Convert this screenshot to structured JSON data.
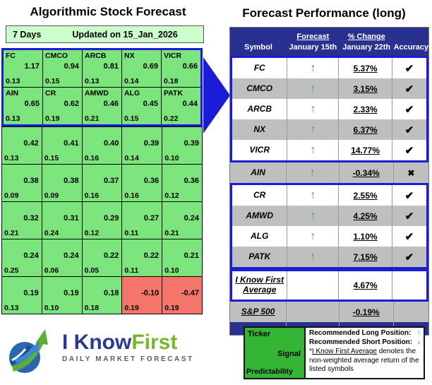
{
  "colors": {
    "accent_blue": "#1B1BD8",
    "navy_header": "#28318F",
    "cell_green": "#7BE57B",
    "cell_red": "#F4766B",
    "bar_pale_green": "#CCFFCC",
    "row_gray": "#BFBFBF",
    "legend_green": "#35B535",
    "arrow_green": "#27AE60",
    "arrow_red": "#E03131",
    "logo_blue": "#2B3A8F",
    "logo_green": "#76B82A"
  },
  "icons": {
    "up_arrow": "↑",
    "down_arrow": "↓",
    "check": "✔",
    "cross": "✖"
  },
  "left_panel": {
    "title": "Algorithmic Stock Forecast",
    "period": "7 Days",
    "updated": "Updated on 15_Jan_2026",
    "grid_groups": [
      {
        "boxed": true,
        "rows": [
          {
            "cells": [
              {
                "ticker": "FC",
                "signal": "1.17",
                "predictability": "0.13",
                "negative": false
              },
              {
                "ticker": "CMCO",
                "signal": "0.94",
                "predictability": "0.15",
                "negative": false
              },
              {
                "ticker": "ARCB",
                "signal": "0.81",
                "predictability": "0.13",
                "negative": false
              },
              {
                "ticker": "NX",
                "signal": "0.69",
                "predictability": "0.14",
                "negative": false
              },
              {
                "ticker": "VICR",
                "signal": "0.66",
                "predictability": "0.18",
                "negative": false
              }
            ]
          },
          {
            "cells": [
              {
                "ticker": "AIN",
                "signal": "0.65",
                "predictability": "0.13",
                "negative": false
              },
              {
                "ticker": "CR",
                "signal": "0.62",
                "predictability": "0.19",
                "negative": false
              },
              {
                "ticker": "AMWD",
                "signal": "0.46",
                "predictability": "0.21",
                "negative": false
              },
              {
                "ticker": "ALG",
                "signal": "0.45",
                "predictability": "0.15",
                "negative": false
              },
              {
                "ticker": "PATK",
                "signal": "0.44",
                "predictability": "0.22",
                "negative": false
              }
            ]
          }
        ]
      },
      {
        "boxed": false,
        "rows": [
          {
            "cells": [
              {
                "ticker": "",
                "signal": "0.42",
                "predictability": "0.13",
                "negative": false
              },
              {
                "ticker": "",
                "signal": "0.41",
                "predictability": "0.15",
                "negative": false
              },
              {
                "ticker": "",
                "signal": "0.40",
                "predictability": "0.16",
                "negative": false
              },
              {
                "ticker": "",
                "signal": "0.39",
                "predictability": "0.14",
                "negative": false
              },
              {
                "ticker": "",
                "signal": "0.39",
                "predictability": "0.10",
                "negative": false
              }
            ]
          },
          {
            "cells": [
              {
                "ticker": "",
                "signal": "0.38",
                "predictability": "0.09",
                "negative": false
              },
              {
                "ticker": "",
                "signal": "0.38",
                "predictability": "0.09",
                "negative": false
              },
              {
                "ticker": "",
                "signal": "0.37",
                "predictability": "0.16",
                "negative": false
              },
              {
                "ticker": "",
                "signal": "0.36",
                "predictability": "0.16",
                "negative": false
              },
              {
                "ticker": "",
                "signal": "0.36",
                "predictability": "0.12",
                "negative": false
              }
            ]
          },
          {
            "cells": [
              {
                "ticker": "",
                "signal": "0.32",
                "predictability": "0.21",
                "negative": false
              },
              {
                "ticker": "",
                "signal": "0.31",
                "predictability": "0.24",
                "negative": false
              },
              {
                "ticker": "",
                "signal": "0.29",
                "predictability": "0.12",
                "negative": false
              },
              {
                "ticker": "",
                "signal": "0.27",
                "predictability": "0.11",
                "negative": false
              },
              {
                "ticker": "",
                "signal": "0.24",
                "predictability": "0.21",
                "negative": false
              }
            ]
          },
          {
            "cells": [
              {
                "ticker": "",
                "signal": "0.24",
                "predictability": "0.25",
                "negative": false
              },
              {
                "ticker": "",
                "signal": "0.24",
                "predictability": "0.06",
                "negative": false
              },
              {
                "ticker": "",
                "signal": "0.22",
                "predictability": "0.05",
                "negative": false
              },
              {
                "ticker": "",
                "signal": "0.22",
                "predictability": "0.11",
                "negative": false
              },
              {
                "ticker": "",
                "signal": "0.21",
                "predictability": "0.10",
                "negative": false
              }
            ]
          },
          {
            "cells": [
              {
                "ticker": "",
                "signal": "0.19",
                "predictability": "0.13",
                "negative": false
              },
              {
                "ticker": "",
                "signal": "0.19",
                "predictability": "0.10",
                "negative": false
              },
              {
                "ticker": "",
                "signal": "0.18",
                "predictability": "0.18",
                "negative": false
              },
              {
                "ticker": "",
                "signal": "-0.10",
                "predictability": "0.19",
                "negative": true
              },
              {
                "ticker": "",
                "signal": "-0.47",
                "predictability": "0.19",
                "negative": true
              }
            ]
          }
        ]
      }
    ]
  },
  "right_panel": {
    "title": "Forecast Performance (long)",
    "table": {
      "headers": {
        "symbol": "Symbol",
        "forecast_line1": "Forecast",
        "forecast_line2": "January 15th",
        "change_line1": "% Change",
        "change_line2": "January 22th",
        "accuracy": "Accuracy"
      },
      "groups": [
        {
          "boxed": true,
          "rows": [
            {
              "symbol": "FC",
              "symbol_line2": "",
              "forecast": "up",
              "change": "5.37%",
              "accuracy": "check",
              "shade": "white",
              "tall": false,
              "underline": false
            },
            {
              "symbol": "CMCO",
              "symbol_line2": "",
              "forecast": "up",
              "change": "3.15%",
              "accuracy": "check",
              "shade": "gray",
              "tall": false,
              "underline": false
            },
            {
              "symbol": "ARCB",
              "symbol_line2": "",
              "forecast": "up",
              "change": "2.33%",
              "accuracy": "check",
              "shade": "white",
              "tall": false,
              "underline": false
            },
            {
              "symbol": "NX",
              "symbol_line2": "",
              "forecast": "up",
              "change": "6.37%",
              "accuracy": "check",
              "shade": "gray",
              "tall": false,
              "underline": false
            },
            {
              "symbol": "VICR",
              "symbol_line2": "",
              "forecast": "up",
              "change": "14.77%",
              "accuracy": "check",
              "shade": "white",
              "tall": false,
              "underline": false
            }
          ]
        },
        {
          "boxed": false,
          "rows": [
            {
              "symbol": "AIN",
              "symbol_line2": "",
              "forecast": "up",
              "change": "-0.34%",
              "accuracy": "cross",
              "shade": "gray",
              "tall": false,
              "underline": false
            }
          ]
        },
        {
          "boxed": true,
          "rows": [
            {
              "symbol": "CR",
              "symbol_line2": "",
              "forecast": "up",
              "change": "2.55%",
              "accuracy": "check",
              "shade": "white",
              "tall": false,
              "underline": false
            },
            {
              "symbol": "AMWD",
              "symbol_line2": "",
              "forecast": "up",
              "change": "4.25%",
              "accuracy": "check",
              "shade": "gray",
              "tall": false,
              "underline": false
            },
            {
              "symbol": "ALG",
              "symbol_line2": "",
              "forecast": "up",
              "change": "1.10%",
              "accuracy": "check",
              "shade": "white",
              "tall": false,
              "underline": false
            },
            {
              "symbol": "PATK",
              "symbol_line2": "",
              "forecast": "up",
              "change": "7.15%",
              "accuracy": "check",
              "shade": "gray",
              "tall": false,
              "underline": false
            }
          ]
        },
        {
          "boxed": true,
          "rows": [
            {
              "symbol": "I Know First",
              "symbol_line2": "Average",
              "forecast": "",
              "change": "4.67%",
              "accuracy": "",
              "shade": "white",
              "tall": true,
              "underline": true
            }
          ]
        },
        {
          "boxed": false,
          "rows": [
            {
              "symbol": "S&P 500",
              "symbol_line2": "",
              "forecast": "",
              "change": "-0.19%",
              "accuracy": "",
              "shade": "gray",
              "tall": false,
              "underline": true
            }
          ]
        }
      ]
    }
  },
  "logo": {
    "text_primary": "I Know",
    "text_secondary": "First",
    "tagline": "DAILY MARKET FORECAST"
  },
  "legend": {
    "ticker_label": "Ticker",
    "signal_label": "Signal",
    "predictability_label": "Predictability",
    "long_label": "Recommended Long Position:",
    "short_label": "Recommended Short Position:",
    "note_prefix": "*",
    "note_underlined": "I Know First Average",
    "note_rest": " denotes the non-weighted average return of the listed symbols"
  },
  "chart_data": [
    {
      "type": "table",
      "title": "Algorithmic Stock Forecast",
      "period": "7 Days",
      "updated": "15_Jan_2026",
      "columns": [
        "ticker",
        "signal",
        "predictability"
      ],
      "rows": [
        [
          "FC",
          1.17,
          0.13
        ],
        [
          "CMCO",
          0.94,
          0.15
        ],
        [
          "ARCB",
          0.81,
          0.13
        ],
        [
          "NX",
          0.69,
          0.14
        ],
        [
          "VICR",
          0.66,
          0.18
        ],
        [
          "AIN",
          0.65,
          0.13
        ],
        [
          "CR",
          0.62,
          0.19
        ],
        [
          "AMWD",
          0.46,
          0.21
        ],
        [
          "ALG",
          0.45,
          0.15
        ],
        [
          "PATK",
          0.44,
          0.22
        ],
        [
          "",
          0.42,
          0.13
        ],
        [
          "",
          0.41,
          0.15
        ],
        [
          "",
          0.4,
          0.16
        ],
        [
          "",
          0.39,
          0.14
        ],
        [
          "",
          0.39,
          0.1
        ],
        [
          "",
          0.38,
          0.09
        ],
        [
          "",
          0.38,
          0.09
        ],
        [
          "",
          0.37,
          0.16
        ],
        [
          "",
          0.36,
          0.16
        ],
        [
          "",
          0.36,
          0.12
        ],
        [
          "",
          0.32,
          0.21
        ],
        [
          "",
          0.31,
          0.24
        ],
        [
          "",
          0.29,
          0.12
        ],
        [
          "",
          0.27,
          0.11
        ],
        [
          "",
          0.24,
          0.21
        ],
        [
          "",
          0.24,
          0.25
        ],
        [
          "",
          0.24,
          0.06
        ],
        [
          "",
          0.22,
          0.05
        ],
        [
          "",
          0.22,
          0.11
        ],
        [
          "",
          0.21,
          0.1
        ],
        [
          "",
          0.19,
          0.13
        ],
        [
          "",
          0.19,
          0.1
        ],
        [
          "",
          0.18,
          0.18
        ],
        [
          "",
          -0.1,
          0.19
        ],
        [
          "",
          -0.47,
          0.19
        ]
      ],
      "cell_color_rule": "green if signal >= 0, red if signal < 0"
    },
    {
      "type": "table",
      "title": "Forecast Performance (long)",
      "columns": [
        "Symbol",
        "Forecast January 15th",
        "% Change January 22th",
        "Accuracy"
      ],
      "rows": [
        [
          "FC",
          "up",
          "5.37%",
          "correct"
        ],
        [
          "CMCO",
          "up",
          "3.15%",
          "correct"
        ],
        [
          "ARCB",
          "up",
          "2.33%",
          "correct"
        ],
        [
          "NX",
          "up",
          "6.37%",
          "correct"
        ],
        [
          "VICR",
          "up",
          "14.77%",
          "correct"
        ],
        [
          "AIN",
          "up",
          "-0.34%",
          "incorrect"
        ],
        [
          "CR",
          "up",
          "2.55%",
          "correct"
        ],
        [
          "AMWD",
          "up",
          "4.25%",
          "correct"
        ],
        [
          "ALG",
          "up",
          "1.10%",
          "correct"
        ],
        [
          "PATK",
          "up",
          "7.15%",
          "correct"
        ],
        [
          "I Know First Average",
          "",
          "4.67%",
          ""
        ],
        [
          "S&P 500",
          "",
          "-0.19%",
          ""
        ]
      ]
    }
  ]
}
